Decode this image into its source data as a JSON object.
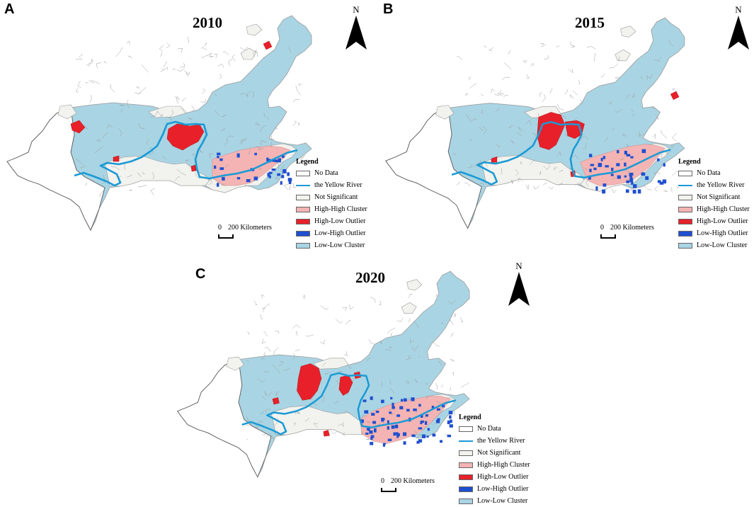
{
  "panels": [
    {
      "letter": "A",
      "year": "2010"
    },
    {
      "letter": "B",
      "year": "2015"
    },
    {
      "letter": "C",
      "year": "2020"
    }
  ],
  "north_label": "N",
  "legend": {
    "title": "Legend",
    "items": [
      {
        "label": "No Data",
        "color": "#ffffff",
        "kind": "box"
      },
      {
        "label": "the Yellow River",
        "color": "#1a9ad6",
        "kind": "line"
      },
      {
        "label": "Not Significant",
        "color": "#f2f2ee",
        "kind": "box"
      },
      {
        "label": "High-High Cluster",
        "color": "#f4b4b4",
        "kind": "box"
      },
      {
        "label": "High-Low Outlier",
        "color": "#e8202a",
        "kind": "box"
      },
      {
        "label": "Low-High Outlier",
        "color": "#1f4fd0",
        "kind": "box"
      },
      {
        "label": "Low-Low Cluster",
        "color": "#a9d4e3",
        "kind": "box"
      }
    ]
  },
  "scale": {
    "zero": "0",
    "label": "200 Kilometers"
  },
  "colors": {
    "low_low": "#a9d4e3",
    "not_significant": "#f2f2ee",
    "high_high": "#f4b4b4",
    "high_low": "#e8202a",
    "low_high": "#1f4fd0",
    "river": "#1a9ad6",
    "boundary": "#9a9a9a"
  }
}
